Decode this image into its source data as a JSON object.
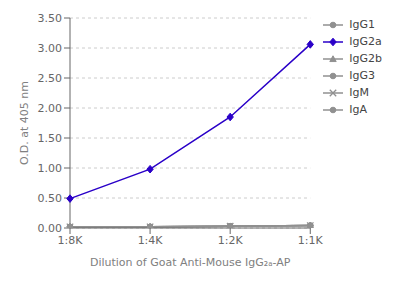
{
  "chart_data": {
    "type": "line",
    "categories": [
      "1:8K",
      "1:4K",
      "1:2K",
      "1:1K"
    ],
    "series": [
      {
        "name": "IgG1",
        "color": "#909090",
        "marker": "circle",
        "values": [
          0.02,
          0.02,
          0.03,
          0.04
        ]
      },
      {
        "name": "IgG2a",
        "color": "#2a00c8",
        "marker": "diamond",
        "values": [
          0.49,
          0.98,
          1.85,
          3.06
        ]
      },
      {
        "name": "IgG2b",
        "color": "#909090",
        "marker": "triangle",
        "values": [
          0.02,
          0.02,
          0.03,
          0.04
        ]
      },
      {
        "name": "IgG3",
        "color": "#909090",
        "marker": "circle",
        "values": [
          0.02,
          0.02,
          0.03,
          0.04
        ]
      },
      {
        "name": "IgM",
        "color": "#909090",
        "marker": "x",
        "values": [
          0.02,
          0.02,
          0.03,
          0.04
        ]
      },
      {
        "name": "IgA",
        "color": "#909090",
        "marker": "circle",
        "values": [
          0.02,
          0.02,
          0.03,
          0.04
        ]
      }
    ],
    "x_label": "Dilution of Goat Anti-Mouse IgG₂ₐ-AP",
    "y_label": "O.D. at 405 nm",
    "ylim": [
      0.0,
      3.5
    ],
    "yticks": [
      {
        "value": 0.0,
        "label": "0.00"
      },
      {
        "value": 0.5,
        "label": "0.50"
      },
      {
        "value": 1.0,
        "label": "1.00"
      },
      {
        "value": 1.5,
        "label": "1.50"
      },
      {
        "value": 2.0,
        "label": "2.00"
      },
      {
        "value": 2.5,
        "label": "2.50"
      },
      {
        "value": 3.0,
        "label": "3.00"
      },
      {
        "value": 3.5,
        "label": "3.50"
      }
    ],
    "grid": true,
    "legend": "right"
  }
}
